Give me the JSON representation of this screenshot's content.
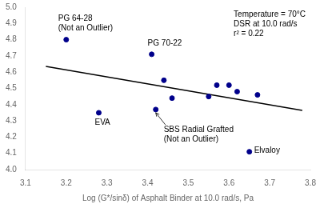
{
  "chart_data": {
    "type": "scatter",
    "xlabel": "Log (G*/sinδ) of Asphalt Binder at 10.0 rad/s, Pa",
    "xlim": [
      3.1,
      3.8
    ],
    "ylim": [
      4.0,
      5.0
    ],
    "xticks": [
      3.1,
      3.2,
      3.3,
      3.4,
      3.5,
      3.6,
      3.7,
      3.8
    ],
    "yticks": [
      {
        "value": 4.0,
        "label": "4.0"
      },
      4.1,
      4.2,
      4.3,
      4.4,
      4.5,
      4.6,
      4.7,
      4.8,
      4.9,
      {
        "value": 5.0,
        "label": "5.0"
      }
    ],
    "grid": false,
    "series": [
      {
        "type": "scatter",
        "color": "#00008B",
        "x": [
          3.2,
          3.28,
          3.41,
          3.42,
          3.44,
          3.46,
          3.55,
          3.57,
          3.6,
          3.62,
          3.65,
          3.67
        ],
        "values": [
          4.8,
          4.35,
          4.71,
          4.37,
          4.55,
          4.44,
          4.45,
          4.52,
          4.52,
          4.48,
          4.11,
          4.46
        ]
      },
      {
        "type": "line",
        "color": "#000000",
        "x": [
          3.15,
          3.78
        ],
        "values": [
          4.635,
          4.365
        ]
      }
    ],
    "annotations": [
      {
        "text": "PG 64-28\n(Not an Outlier)",
        "x": 3.2,
        "y": 4.8
      },
      {
        "text": "EVA",
        "x": 3.28,
        "y": 4.35
      },
      {
        "text": "PG 70-22",
        "x": 3.41,
        "y": 4.71
      },
      {
        "text": "SBS Radial Grafted\n(Not an Outlier)",
        "x": 3.42,
        "y": 4.37
      },
      {
        "text": "Elvaloy",
        "x": 3.65,
        "y": 4.11
      },
      {
        "text": "Temperature = 70°C"
      },
      {
        "text": "DSR at 10.0 rad/s"
      },
      {
        "text": "r² = 0.22"
      }
    ]
  }
}
